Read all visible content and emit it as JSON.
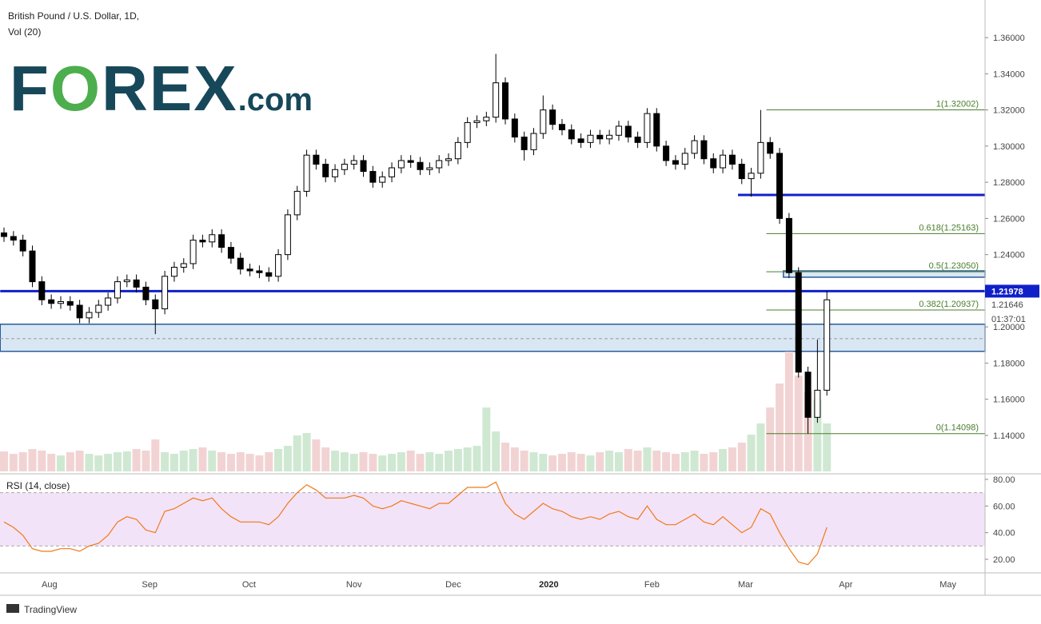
{
  "chart_data": {
    "type": "candlestick",
    "title": "British Pound / U.S. Dollar, 1D,",
    "subtitle": "Vol (20)",
    "logo": [
      "F",
      "O",
      "REX",
      ".com"
    ],
    "footer": "TradingView",
    "ohlc": {
      "open": [
        1.252,
        1.25,
        1.248,
        1.242,
        1.225,
        1.215,
        1.213,
        1.214,
        1.212,
        1.205,
        1.208,
        1.212,
        1.216,
        1.225,
        1.226,
        1.222,
        1.215,
        1.21,
        1.228,
        1.233,
        1.235,
        1.248,
        1.247,
        1.251,
        1.244,
        1.238,
        1.232,
        1.231,
        1.23,
        1.228,
        1.24,
        1.262,
        1.275,
        1.295,
        1.29,
        1.283,
        1.287,
        1.29,
        1.292,
        1.286,
        1.28,
        1.283,
        1.288,
        1.292,
        1.291,
        1.287,
        1.288,
        1.292,
        1.293,
        1.302,
        1.313,
        1.314,
        1.316,
        1.335,
        1.315,
        1.305,
        1.298,
        1.307,
        1.32,
        1.312,
        1.309,
        1.304,
        1.302,
        1.306,
        1.304,
        1.306,
        1.311,
        1.305,
        1.302,
        1.318,
        1.3,
        1.292,
        1.29,
        1.296,
        1.303,
        1.293,
        1.288,
        1.295,
        1.29,
        1.282,
        1.285,
        1.302,
        1.296,
        1.26,
        1.23,
        1.175,
        1.15,
        1.165
      ],
      "high": [
        1.255,
        1.253,
        1.251,
        1.245,
        1.228,
        1.218,
        1.217,
        1.217,
        1.215,
        1.211,
        1.215,
        1.219,
        1.228,
        1.229,
        1.229,
        1.225,
        1.218,
        1.231,
        1.236,
        1.238,
        1.251,
        1.251,
        1.254,
        1.254,
        1.247,
        1.241,
        1.235,
        1.234,
        1.233,
        1.243,
        1.265,
        1.278,
        1.298,
        1.298,
        1.293,
        1.29,
        1.293,
        1.295,
        1.295,
        1.289,
        1.286,
        1.291,
        1.295,
        1.295,
        1.294,
        1.291,
        1.295,
        1.296,
        1.305,
        1.316,
        1.317,
        1.319,
        1.351,
        1.338,
        1.318,
        1.308,
        1.31,
        1.328,
        1.323,
        1.315,
        1.312,
        1.307,
        1.309,
        1.309,
        1.309,
        1.314,
        1.314,
        1.308,
        1.321,
        1.321,
        1.303,
        1.295,
        1.299,
        1.306,
        1.306,
        1.296,
        1.298,
        1.298,
        1.293,
        1.288,
        1.32,
        1.305,
        1.299,
        1.263,
        1.233,
        1.178,
        1.193,
        1.22
      ],
      "low": [
        1.247,
        1.245,
        1.239,
        1.222,
        1.212,
        1.21,
        1.21,
        1.209,
        1.202,
        1.202,
        1.205,
        1.209,
        1.213,
        1.222,
        1.219,
        1.212,
        1.196,
        1.207,
        1.225,
        1.23,
        1.232,
        1.244,
        1.244,
        1.241,
        1.235,
        1.229,
        1.228,
        1.227,
        1.225,
        1.225,
        1.237,
        1.259,
        1.272,
        1.287,
        1.28,
        1.28,
        1.284,
        1.287,
        1.283,
        1.277,
        1.277,
        1.28,
        1.285,
        1.288,
        1.284,
        1.284,
        1.285,
        1.289,
        1.29,
        1.299,
        1.31,
        1.311,
        1.313,
        1.312,
        1.302,
        1.292,
        1.295,
        1.304,
        1.309,
        1.306,
        1.301,
        1.299,
        1.299,
        1.301,
        1.301,
        1.303,
        1.302,
        1.299,
        1.299,
        1.297,
        1.289,
        1.287,
        1.287,
        1.293,
        1.29,
        1.285,
        1.285,
        1.287,
        1.279,
        1.272,
        1.282,
        1.293,
        1.257,
        1.227,
        1.172,
        1.141,
        1.147,
        1.162
      ],
      "close": [
        1.25,
        1.248,
        1.242,
        1.225,
        1.215,
        1.213,
        1.214,
        1.212,
        1.205,
        1.208,
        1.212,
        1.216,
        1.225,
        1.226,
        1.222,
        1.215,
        1.21,
        1.228,
        1.233,
        1.235,
        1.248,
        1.247,
        1.251,
        1.244,
        1.238,
        1.232,
        1.231,
        1.23,
        1.228,
        1.24,
        1.262,
        1.275,
        1.295,
        1.29,
        1.283,
        1.287,
        1.29,
        1.292,
        1.286,
        1.28,
        1.283,
        1.288,
        1.292,
        1.291,
        1.287,
        1.288,
        1.292,
        1.293,
        1.302,
        1.313,
        1.314,
        1.316,
        1.335,
        1.315,
        1.305,
        1.298,
        1.307,
        1.32,
        1.312,
        1.309,
        1.304,
        1.302,
        1.306,
        1.304,
        1.306,
        1.311,
        1.305,
        1.302,
        1.318,
        1.3,
        1.292,
        1.29,
        1.296,
        1.303,
        1.293,
        1.288,
        1.295,
        1.29,
        1.282,
        1.285,
        1.302,
        1.296,
        1.26,
        1.23,
        1.175,
        1.15,
        1.165,
        1.215
      ]
    },
    "volume": [
      25,
      22,
      24,
      28,
      26,
      22,
      20,
      24,
      26,
      22,
      20,
      22,
      24,
      25,
      28,
      26,
      40,
      24,
      22,
      26,
      28,
      30,
      26,
      24,
      22,
      24,
      22,
      20,
      24,
      28,
      32,
      45,
      48,
      40,
      30,
      26,
      24,
      22,
      24,
      22,
      20,
      22,
      24,
      26,
      22,
      24,
      22,
      26,
      28,
      30,
      32,
      80,
      50,
      36,
      30,
      26,
      24,
      22,
      20,
      22,
      24,
      22,
      20,
      24,
      26,
      24,
      28,
      26,
      30,
      26,
      24,
      22,
      24,
      26,
      22,
      24,
      28,
      30,
      36,
      46,
      60,
      80,
      110,
      150,
      120,
      100,
      90,
      60
    ],
    "up_color": "#ffffff",
    "down_color": "#000000",
    "volume_up_color": "#cfe8d2",
    "volume_down_color": "#f2d3d3",
    "xticks": [
      {
        "value": 4.8,
        "label": "Aug"
      },
      {
        "value": 15.4,
        "label": "Sep"
      },
      {
        "value": 25.9,
        "label": "Oct"
      },
      {
        "value": 37.0,
        "label": "Nov"
      },
      {
        "value": 47.5,
        "label": "Dec"
      },
      {
        "value": 57.6,
        "label": "2020"
      },
      {
        "value": 68.5,
        "label": "Feb"
      },
      {
        "value": 78.4,
        "label": "Mar"
      },
      {
        "value": 89.0,
        "label": "Apr"
      },
      {
        "value": 99.8,
        "label": "May"
      }
    ],
    "ylim": [
      1.1201,
      1.3808
    ],
    "yticks": [
      {
        "value": 1.36,
        "label": "1.36000"
      },
      {
        "value": 1.34,
        "label": "1.34000"
      },
      {
        "value": 1.32,
        "label": "1.32000"
      },
      {
        "value": 1.3,
        "label": "1.30000"
      },
      {
        "value": 1.28,
        "label": "1.28000"
      },
      {
        "value": 1.26,
        "label": "1.26000"
      },
      {
        "value": 1.24,
        "label": "1.24000"
      },
      {
        "value": 1.22,
        "label": "1.22000"
      },
      {
        "value": 1.2,
        "label": "1.20000"
      },
      {
        "value": 1.18,
        "label": "1.18000"
      },
      {
        "value": 1.16,
        "label": "1.16000"
      },
      {
        "value": 1.14,
        "label": "1.14000"
      }
    ],
    "zones": [
      {
        "low": 1.1865,
        "high": 1.2015,
        "from": -0.4
      },
      {
        "low": 1.2275,
        "high": 1.231,
        "from": 82.4
      }
    ],
    "zone_midline": 1.1935,
    "levels": [
      {
        "value": 1.21978,
        "from": -0.4
      },
      {
        "value": 1.273,
        "from": 77.6
      }
    ],
    "last_price": {
      "value": 1.21978,
      "label": "1.21978"
    },
    "current_price": {
      "value": 1.21646,
      "label": "1.21646"
    },
    "countdown": "01:37:01",
    "fib": [
      {
        "value": 1.32002,
        "label": "1(1.32002)"
      },
      {
        "value": 1.25163,
        "label": "0.618(1.25163)"
      },
      {
        "value": 1.2305,
        "label": "0.5(1.23050)"
      },
      {
        "value": 1.20937,
        "label": "0.382(1.20937)"
      },
      {
        "value": 1.14098,
        "label": "0(1.14098)"
      }
    ],
    "fib_from": 80.6,
    "fib_color": "#4a7d2c",
    "level_color": "#1020c8",
    "rsi": {
      "title": "RSI (14, close)",
      "color": "#f07a1a",
      "values": [
        48,
        44,
        38,
        28,
        26,
        26,
        28,
        28,
        26,
        30,
        32,
        38,
        48,
        52,
        50,
        42,
        40,
        56,
        58,
        62,
        66,
        64,
        66,
        58,
        52,
        48,
        48,
        48,
        46,
        52,
        62,
        70,
        76,
        72,
        66,
        66,
        66,
        68,
        66,
        60,
        58,
        60,
        64,
        62,
        60,
        58,
        62,
        62,
        68,
        74,
        74,
        74,
        78,
        62,
        54,
        50,
        56,
        62,
        58,
        56,
        52,
        50,
        52,
        50,
        54,
        56,
        52,
        50,
        60,
        50,
        46,
        46,
        50,
        54,
        48,
        46,
        52,
        46,
        40,
        44,
        58,
        54,
        40,
        28,
        18,
        16,
        24,
        44
      ],
      "ylim": [
        10.4,
        81.2
      ],
      "yticks": [
        {
          "value": 80,
          "label": "80.00"
        },
        {
          "value": 60,
          "label": "60.00"
        },
        {
          "value": 40,
          "label": "40.00"
        },
        {
          "value": 20,
          "label": "20.00"
        }
      ],
      "band": [
        30,
        70
      ]
    }
  }
}
